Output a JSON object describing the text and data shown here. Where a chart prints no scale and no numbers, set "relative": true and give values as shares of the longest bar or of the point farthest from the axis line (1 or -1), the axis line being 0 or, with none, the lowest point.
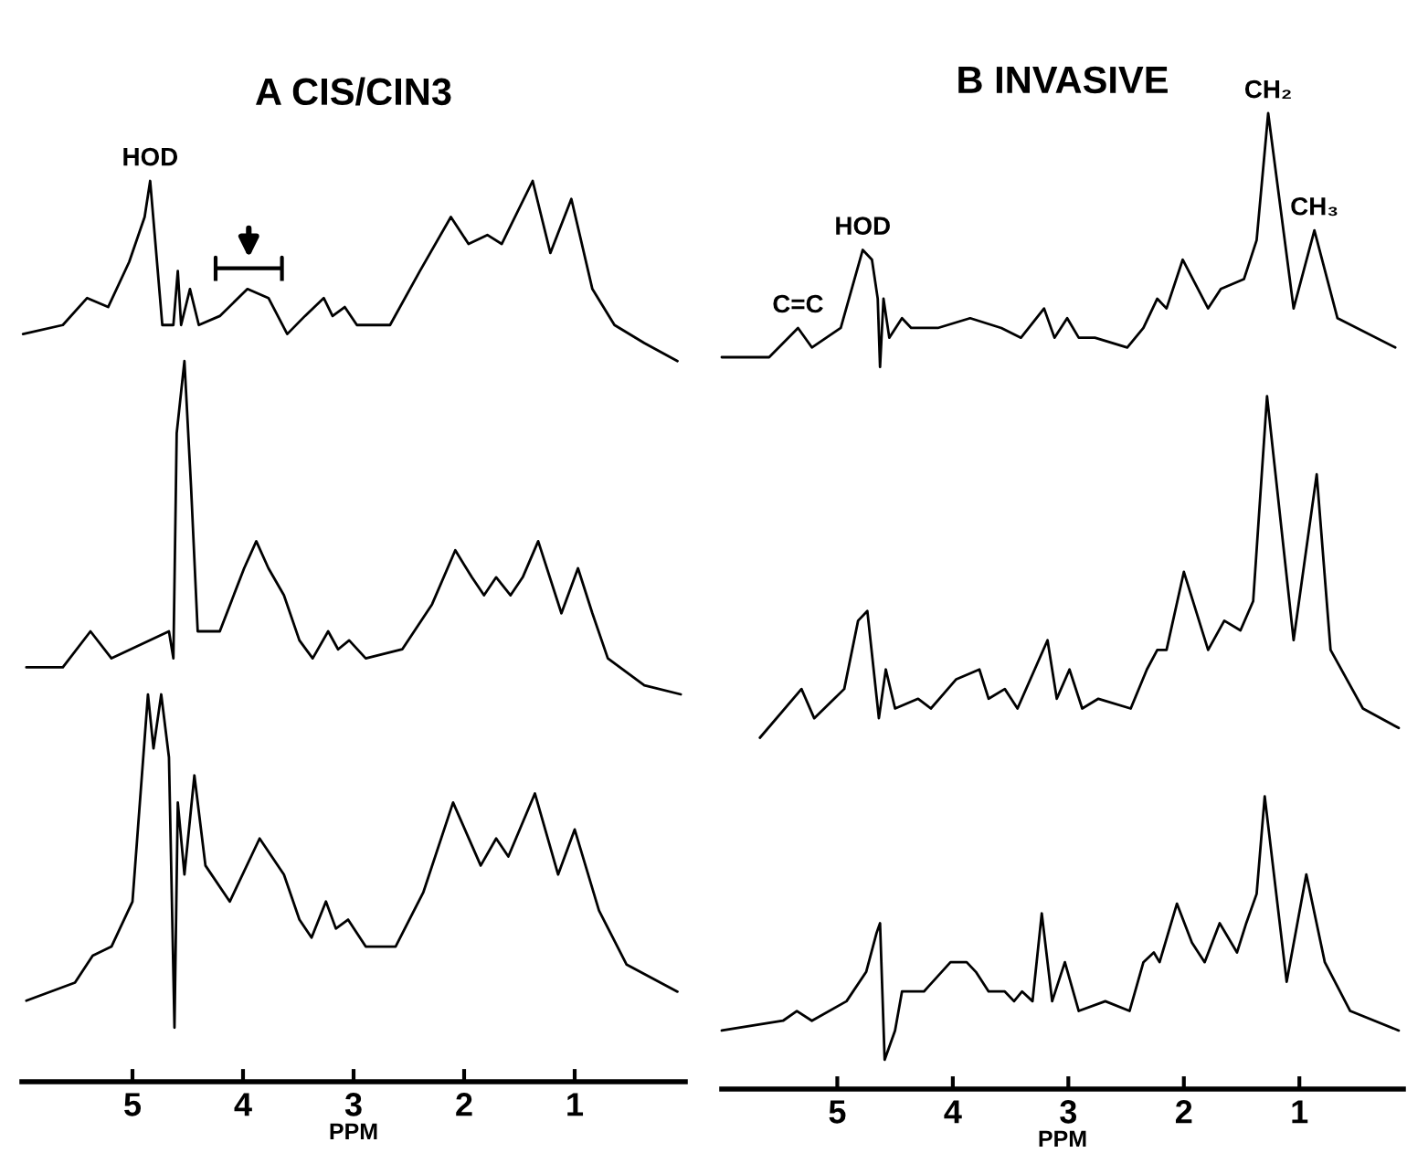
{
  "chart_data": [
    {
      "type": "line",
      "title": "A CIS/CIN3",
      "relative": true,
      "xlim": [
        6,
        0
      ],
      "xticks": [
        5,
        4,
        3,
        2,
        1
      ],
      "xlabel": "PPM",
      "series": [
        {
          "color": "#000000",
          "x": [
            5.99,
            5.63,
            5.41,
            5.22,
            5.03,
            4.89,
            4.84,
            4.73,
            4.63,
            4.59,
            4.56,
            4.48,
            4.4,
            4.21,
            3.96,
            3.77,
            3.6,
            3.44,
            3.27,
            3.19,
            3.08,
            2.97,
            2.67,
            2.4,
            2.12,
            1.96,
            1.79,
            1.66,
            1.38,
            1.22,
            1.03,
            0.84,
            0.64,
            0.37,
            0.07
          ],
          "values": [
            0.83,
            0.84,
            0.87,
            0.86,
            0.91,
            0.96,
            1.0,
            0.84,
            0.84,
            0.9,
            0.84,
            0.88,
            0.84,
            0.85,
            0.88,
            0.87,
            0.83,
            0.85,
            0.87,
            0.85,
            0.86,
            0.84,
            0.84,
            0.9,
            0.96,
            0.93,
            0.94,
            0.93,
            1.0,
            0.92,
            0.98,
            0.88,
            0.84,
            0.82,
            0.8
          ]
        },
        {
          "color": "#000000",
          "x": [
            5.96,
            5.63,
            5.38,
            5.19,
            4.67,
            4.63,
            4.6,
            4.53,
            4.47,
            4.41,
            4.21,
            3.99,
            3.88,
            3.77,
            3.63,
            3.49,
            3.37,
            3.23,
            3.14,
            3.04,
            2.89,
            2.56,
            2.29,
            2.08,
            1.93,
            1.82,
            1.71,
            1.58,
            1.47,
            1.33,
            1.12,
            0.97,
            0.84,
            0.7,
            0.37,
            0.04
          ],
          "values": [
            0.46,
            0.46,
            0.5,
            0.47,
            0.5,
            0.47,
            0.72,
            0.8,
            0.66,
            0.5,
            0.5,
            0.57,
            0.6,
            0.57,
            0.54,
            0.49,
            0.47,
            0.5,
            0.48,
            0.49,
            0.47,
            0.48,
            0.53,
            0.59,
            0.56,
            0.54,
            0.56,
            0.54,
            0.56,
            0.6,
            0.52,
            0.57,
            0.52,
            0.47,
            0.44,
            0.43
          ]
        },
        {
          "color": "#000000",
          "x": [
            5.96,
            5.52,
            5.36,
            5.19,
            5.0,
            4.86,
            4.81,
            4.74,
            4.67,
            4.62,
            4.59,
            4.53,
            4.44,
            4.34,
            4.12,
            3.85,
            3.63,
            3.49,
            3.38,
            3.25,
            3.16,
            3.05,
            2.89,
            2.62,
            2.37,
            2.1,
            1.85,
            1.71,
            1.6,
            1.36,
            1.15,
            1.0,
            0.78,
            0.53,
            0.07
          ],
          "values": [
            0.09,
            0.11,
            0.14,
            0.15,
            0.2,
            0.43,
            0.37,
            0.43,
            0.36,
            0.06,
            0.31,
            0.23,
            0.34,
            0.24,
            0.2,
            0.27,
            0.23,
            0.18,
            0.16,
            0.2,
            0.17,
            0.18,
            0.15,
            0.15,
            0.21,
            0.31,
            0.24,
            0.27,
            0.25,
            0.32,
            0.23,
            0.28,
            0.19,
            0.13,
            0.1
          ]
        }
      ],
      "annotations": [
        {
          "text": "HOD",
          "x": 4.84,
          "y": 1.0
        }
      ]
    },
    {
      "type": "line",
      "title": "B INVASIVE",
      "relative": true,
      "xlim": [
        6,
        0.1
      ],
      "xticks": [
        5,
        4,
        3,
        2,
        1
      ],
      "xlabel": "PPM",
      "series": [
        {
          "color": "#000000",
          "x": [
            6.0,
            5.59,
            5.34,
            5.22,
            4.97,
            4.78,
            4.7,
            4.65,
            4.63,
            4.6,
            4.55,
            4.44,
            4.36,
            4.13,
            3.85,
            3.58,
            3.41,
            3.21,
            3.12,
            3.01,
            2.91,
            2.77,
            2.49,
            2.35,
            2.23,
            2.15,
            2.01,
            1.79,
            1.68,
            1.48,
            1.37,
            1.27,
            1.05,
            0.87,
            0.67,
            0.17
          ],
          "values": [
            0.75,
            0.75,
            0.78,
            0.76,
            0.78,
            0.86,
            0.85,
            0.81,
            0.74,
            0.81,
            0.77,
            0.79,
            0.78,
            0.78,
            0.79,
            0.78,
            0.77,
            0.8,
            0.77,
            0.79,
            0.77,
            0.77,
            0.76,
            0.78,
            0.81,
            0.8,
            0.85,
            0.8,
            0.82,
            0.83,
            0.87,
            1.0,
            0.8,
            0.88,
            0.79,
            0.76
          ]
        },
        {
          "color": "#000000",
          "x": [
            5.67,
            5.31,
            5.2,
            4.94,
            4.82,
            4.74,
            4.64,
            4.58,
            4.5,
            4.3,
            4.19,
            3.97,
            3.77,
            3.69,
            3.55,
            3.44,
            3.18,
            3.1,
            2.99,
            2.88,
            2.74,
            2.46,
            2.32,
            2.23,
            2.15,
            2.0,
            1.79,
            1.65,
            1.51,
            1.4,
            1.28,
            1.05,
            0.85,
            0.73,
            0.45,
            0.14
          ],
          "values": [
            0.36,
            0.41,
            0.38,
            0.41,
            0.48,
            0.49,
            0.38,
            0.43,
            0.39,
            0.4,
            0.39,
            0.42,
            0.43,
            0.4,
            0.41,
            0.39,
            0.46,
            0.4,
            0.43,
            0.39,
            0.4,
            0.39,
            0.43,
            0.45,
            0.45,
            0.53,
            0.45,
            0.48,
            0.47,
            0.5,
            0.71,
            0.46,
            0.63,
            0.45,
            0.39,
            0.37
          ]
        },
        {
          "color": "#000000",
          "x": [
            6.0,
            5.47,
            5.35,
            5.22,
            4.92,
            4.75,
            4.66,
            4.63,
            4.59,
            4.5,
            4.44,
            4.36,
            4.25,
            4.02,
            3.88,
            3.8,
            3.69,
            3.55,
            3.47,
            3.4,
            3.31,
            3.23,
            3.14,
            3.03,
            2.91,
            2.68,
            2.47,
            2.35,
            2.26,
            2.21,
            2.06,
            1.93,
            1.82,
            1.69,
            1.54,
            1.46,
            1.37,
            1.3,
            1.11,
            0.94,
            0.78,
            0.56,
            0.14
          ],
          "values": [
            0.06,
            0.07,
            0.08,
            0.07,
            0.09,
            0.12,
            0.16,
            0.17,
            0.03,
            0.06,
            0.1,
            0.1,
            0.1,
            0.13,
            0.13,
            0.12,
            0.1,
            0.1,
            0.09,
            0.1,
            0.09,
            0.18,
            0.09,
            0.13,
            0.08,
            0.09,
            0.08,
            0.13,
            0.14,
            0.13,
            0.19,
            0.15,
            0.13,
            0.17,
            0.14,
            0.17,
            0.2,
            0.3,
            0.11,
            0.22,
            0.13,
            0.08,
            0.06
          ]
        }
      ],
      "annotations": [
        {
          "text": "C=C",
          "x": 5.34,
          "y": 0.78
        },
        {
          "text": "HOD",
          "x": 4.78,
          "y": 0.86
        },
        {
          "text": "CH₂",
          "x": 1.27,
          "y": 1.0
        },
        {
          "text": "CH₃",
          "x": 0.87,
          "y": 0.88
        }
      ]
    }
  ]
}
